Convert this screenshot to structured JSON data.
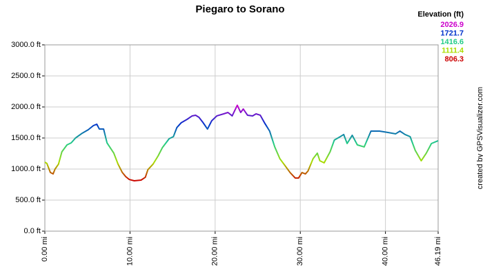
{
  "chart_data": {
    "type": "line",
    "title": "Piegaro to Sorano",
    "legend_title": "Elevation (ft)",
    "credit": "created by GPSVisualizer.com",
    "color_scale": [
      {
        "value": 2026.9,
        "color": "#cc00cc"
      },
      {
        "value": 1721.7,
        "color": "#0033cc"
      },
      {
        "value": 1416.6,
        "color": "#22cc88"
      },
      {
        "value": 1111.4,
        "color": "#aadd00"
      },
      {
        "value": 806.3,
        "color": "#cc0000"
      }
    ],
    "x": [
      0,
      0.24,
      0.65,
      0.97,
      1.2,
      1.6,
      2.0,
      2.6,
      3.1,
      3.6,
      4.4,
      5.1,
      5.7,
      6.1,
      6.4,
      6.9,
      7.3,
      8.1,
      8.6,
      9.1,
      9.5,
      9.9,
      10.5,
      11.3,
      11.8,
      12.1,
      12.7,
      13.3,
      13.8,
      14.6,
      15.1,
      15.5,
      16.0,
      16.7,
      17.3,
      17.7,
      18.1,
      18.6,
      19.1,
      19.6,
      20.2,
      21.0,
      21.5,
      22.0,
      22.6,
      23.0,
      23.3,
      23.8,
      24.4,
      24.8,
      25.3,
      25.8,
      26.4,
      27.0,
      27.6,
      28.2,
      28.8,
      29.4,
      29.8,
      30.2,
      30.6,
      30.9,
      31.5,
      32.0,
      32.3,
      32.8,
      33.5,
      34.0,
      34.7,
      35.1,
      35.5,
      36.1,
      36.7,
      37.5,
      38.3,
      39.3,
      40.3,
      41.2,
      41.7,
      42.3,
      42.9,
      43.5,
      44.2,
      44.8,
      45.4,
      46.19
    ],
    "series": [
      {
        "name": "Elevation",
        "values": [
          1111,
          1090,
          944,
          922,
          1000,
          1078,
          1278,
          1389,
          1422,
          1500,
          1578,
          1633,
          1700,
          1722,
          1644,
          1644,
          1422,
          1256,
          1078,
          944,
          878,
          833,
          811,
          822,
          867,
          989,
          1078,
          1211,
          1344,
          1489,
          1522,
          1667,
          1744,
          1800,
          1856,
          1867,
          1833,
          1744,
          1644,
          1778,
          1856,
          1889,
          1911,
          1856,
          2027,
          1911,
          1967,
          1867,
          1856,
          1889,
          1867,
          1744,
          1611,
          1356,
          1167,
          1056,
          944,
          856,
          856,
          944,
          922,
          967,
          1167,
          1256,
          1133,
          1100,
          1278,
          1467,
          1522,
          1556,
          1411,
          1544,
          1389,
          1356,
          1611,
          1611,
          1589,
          1567,
          1611,
          1556,
          1522,
          1300,
          1133,
          1256,
          1411,
          1456
        ]
      }
    ],
    "xlim": [
      0,
      46.19
    ],
    "xticks": [
      {
        "value": 0,
        "label": "0.00 mi"
      },
      {
        "value": 10,
        "label": "10.00 mi"
      },
      {
        "value": 20,
        "label": "20.00 mi"
      },
      {
        "value": 30,
        "label": "30.00 mi"
      },
      {
        "value": 40,
        "label": "40.00 mi"
      },
      {
        "value": 46.19,
        "label": "46.19 mi"
      }
    ],
    "ylim": [
      0,
      3000
    ],
    "yticks": [
      {
        "value": 0,
        "label": "0.0 ft"
      },
      {
        "value": 500,
        "label": "500.0 ft"
      },
      {
        "value": 1000,
        "label": "1000.0 ft"
      },
      {
        "value": 1500,
        "label": "1500.0 ft"
      },
      {
        "value": 2000,
        "label": "2000.0 ft"
      },
      {
        "value": 2500,
        "label": "2500.0 ft"
      },
      {
        "value": 3000,
        "label": "3000.0 ft"
      }
    ],
    "grid": true
  }
}
